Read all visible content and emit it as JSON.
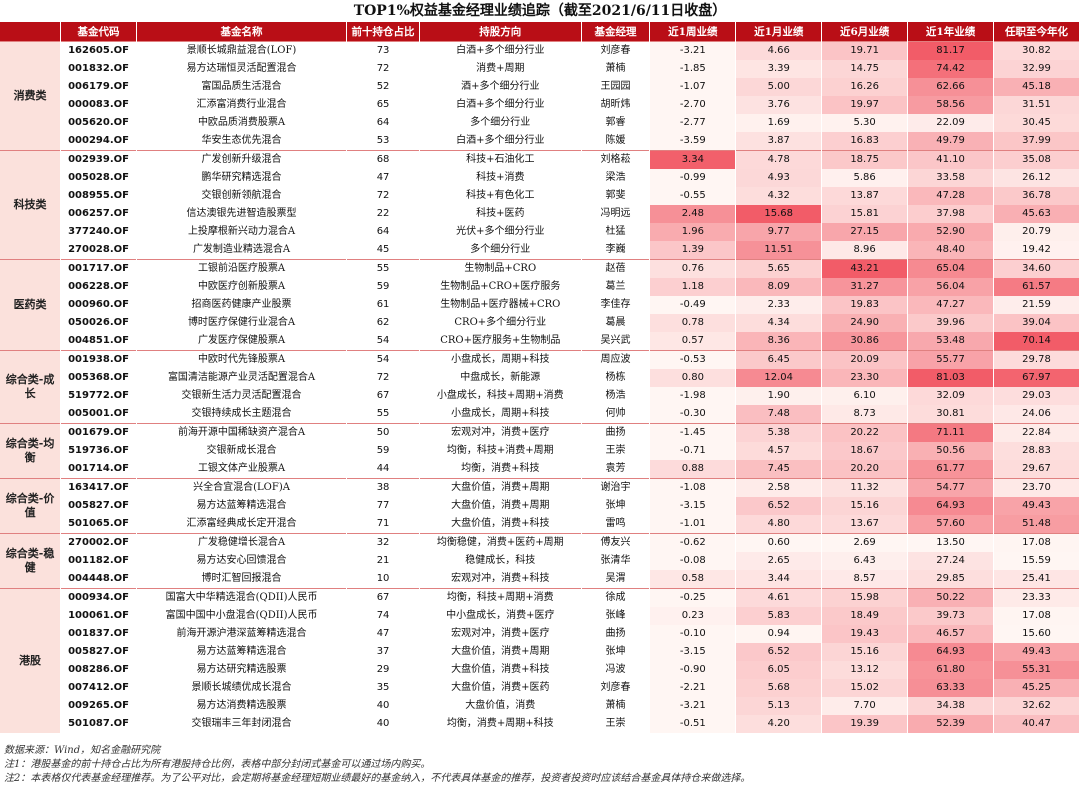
{
  "title": "TOP1%权益基金经理业绩追踪（截至2021/6/11日收盘）",
  "headers": [
    "",
    "基金代码",
    "基金名称",
    "前十持仓占比",
    "持股方向",
    "基金经理",
    "近1周业绩",
    "近1月业绩",
    "近6月业绩",
    "近1年业绩",
    "任职至今年化"
  ],
  "groups": [
    {
      "label": "消费类",
      "rows": [
        {
          "code": "162605.OF",
          "name": "景顺长城鼎益混合(LOF)",
          "hold": "73",
          "dir": "白酒+多个细分行业",
          "mgr": "刘彦春",
          "w1": "-3.21",
          "m1": "4.66",
          "m6": "19.71",
          "y1": "81.17",
          "ann": "30.82"
        },
        {
          "code": "001832.OF",
          "name": "易方达瑞恒灵活配置混合",
          "hold": "72",
          "dir": "消费+周期",
          "mgr": "萧楠",
          "w1": "-1.85",
          "m1": "3.39",
          "m6": "14.75",
          "y1": "74.42",
          "ann": "32.99"
        },
        {
          "code": "006179.OF",
          "name": "富国品质生活混合",
          "hold": "52",
          "dir": "酒+多个细分行业",
          "mgr": "王园园",
          "w1": "-1.07",
          "m1": "5.00",
          "m6": "16.26",
          "y1": "62.66",
          "ann": "45.18"
        },
        {
          "code": "000083.OF",
          "name": "汇添富消费行业混合",
          "hold": "65",
          "dir": "白酒+多个细分行业",
          "mgr": "胡昕炜",
          "w1": "-2.70",
          "m1": "3.76",
          "m6": "19.97",
          "y1": "58.56",
          "ann": "31.51"
        },
        {
          "code": "005620.OF",
          "name": "中欧品质消费股票A",
          "hold": "64",
          "dir": "多个细分行业",
          "mgr": "郭睿",
          "w1": "-2.77",
          "m1": "1.69",
          "m6": "5.30",
          "y1": "22.09",
          "ann": "30.45"
        },
        {
          "code": "000294.OF",
          "name": "华安生态优先混合",
          "hold": "53",
          "dir": "白酒+多个细分行业",
          "mgr": "陈媛",
          "w1": "-3.59",
          "m1": "3.87",
          "m6": "16.83",
          "y1": "49.79",
          "ann": "37.99"
        }
      ]
    },
    {
      "label": "科技类",
      "rows": [
        {
          "code": "002939.OF",
          "name": "广发创新升级混合",
          "hold": "68",
          "dir": "科技+石油化工",
          "mgr": "刘格菘",
          "w1": "3.34",
          "m1": "4.78",
          "m6": "18.75",
          "y1": "41.10",
          "ann": "35.08"
        },
        {
          "code": "005028.OF",
          "name": "鹏华研究精选混合",
          "hold": "47",
          "dir": "科技+消费",
          "mgr": "梁浩",
          "w1": "-0.99",
          "m1": "4.93",
          "m6": "5.86",
          "y1": "33.58",
          "ann": "26.12"
        },
        {
          "code": "008955.OF",
          "name": "交银创新领航混合",
          "hold": "72",
          "dir": "科技+有色化工",
          "mgr": "郭斐",
          "w1": "-0.55",
          "m1": "4.32",
          "m6": "13.87",
          "y1": "47.28",
          "ann": "36.78"
        },
        {
          "code": "006257.OF",
          "name": "信达澳银先进智造股票型",
          "hold": "22",
          "dir": "科技+医药",
          "mgr": "冯明远",
          "w1": "2.48",
          "m1": "15.68",
          "m6": "15.81",
          "y1": "37.98",
          "ann": "45.63"
        },
        {
          "code": "377240.OF",
          "name": "上投摩根新兴动力混合A",
          "hold": "64",
          "dir": "光伏+多个细分行业",
          "mgr": "杜猛",
          "w1": "1.96",
          "m1": "9.77",
          "m6": "27.15",
          "y1": "52.90",
          "ann": "20.79"
        },
        {
          "code": "270028.OF",
          "name": "广发制造业精选混合A",
          "hold": "45",
          "dir": "多个细分行业",
          "mgr": "李巍",
          "w1": "1.39",
          "m1": "11.51",
          "m6": "8.96",
          "y1": "48.40",
          "ann": "19.42"
        }
      ]
    },
    {
      "label": "医药类",
      "rows": [
        {
          "code": "001717.OF",
          "name": "工银前沿医疗股票A",
          "hold": "55",
          "dir": "生物制品+CRO",
          "mgr": "赵蓓",
          "w1": "0.76",
          "m1": "5.65",
          "m6": "43.21",
          "y1": "65.04",
          "ann": "34.60"
        },
        {
          "code": "006228.OF",
          "name": "中欧医疗创新股票A",
          "hold": "59",
          "dir": "生物制品+CRO+医疗服务",
          "mgr": "葛兰",
          "w1": "1.18",
          "m1": "8.09",
          "m6": "31.27",
          "y1": "56.04",
          "ann": "61.57"
        },
        {
          "code": "000960.OF",
          "name": "招商医药健康产业股票",
          "hold": "61",
          "dir": "生物制品+医疗器械+CRO",
          "mgr": "李佳存",
          "w1": "-0.49",
          "m1": "2.33",
          "m6": "19.83",
          "y1": "47.27",
          "ann": "21.59"
        },
        {
          "code": "050026.OF",
          "name": "博时医疗保健行业混合A",
          "hold": "62",
          "dir": "CRO+多个细分行业",
          "mgr": "葛晨",
          "w1": "0.78",
          "m1": "4.34",
          "m6": "24.90",
          "y1": "39.96",
          "ann": "39.04"
        },
        {
          "code": "004851.OF",
          "name": "广发医疗保健股票A",
          "hold": "54",
          "dir": "CRO+医疗服务+生物制品",
          "mgr": "吴兴武",
          "w1": "0.57",
          "m1": "8.36",
          "m6": "30.86",
          "y1": "53.48",
          "ann": "70.14"
        }
      ]
    },
    {
      "label": "综合类-成长",
      "rows": [
        {
          "code": "001938.OF",
          "name": "中欧时代先锋股票A",
          "hold": "54",
          "dir": "小盘成长，周期+科技",
          "mgr": "周应波",
          "w1": "-0.53",
          "m1": "6.45",
          "m6": "20.09",
          "y1": "55.77",
          "ann": "29.78"
        },
        {
          "code": "005368.OF",
          "name": "富国清洁能源产业灵活配置混合A",
          "hold": "72",
          "dir": "中盘成长，新能源",
          "mgr": "杨栋",
          "w1": "0.80",
          "m1": "12.04",
          "m6": "23.30",
          "y1": "81.03",
          "ann": "67.97"
        },
        {
          "code": "519772.OF",
          "name": "交银新生活力灵活配置混合",
          "hold": "67",
          "dir": "小盘成长，科技+周期+消费",
          "mgr": "杨浩",
          "w1": "-1.98",
          "m1": "1.90",
          "m6": "6.10",
          "y1": "32.09",
          "ann": "29.03"
        },
        {
          "code": "005001.OF",
          "name": "交银持续成长主题混合",
          "hold": "55",
          "dir": "小盘成长，周期+科技",
          "mgr": "何帅",
          "w1": "-0.30",
          "m1": "7.48",
          "m6": "8.73",
          "y1": "30.81",
          "ann": "24.06"
        }
      ]
    },
    {
      "label": "综合类-均衡",
      "rows": [
        {
          "code": "001679.OF",
          "name": "前海开源中国稀缺资产混合A",
          "hold": "50",
          "dir": "宏观对冲，消费+医疗",
          "mgr": "曲扬",
          "w1": "-1.45",
          "m1": "5.38",
          "m6": "20.22",
          "y1": "71.11",
          "ann": "22.84"
        },
        {
          "code": "519736.OF",
          "name": "交银新成长混合",
          "hold": "59",
          "dir": "均衡，科技+消费+周期",
          "mgr": "王崇",
          "w1": "-0.71",
          "m1": "4.57",
          "m6": "18.67",
          "y1": "50.56",
          "ann": "28.83"
        },
        {
          "code": "001714.OF",
          "name": "工银文体产业股票A",
          "hold": "44",
          "dir": "均衡，消费+科技",
          "mgr": "袁芳",
          "w1": "0.88",
          "m1": "7.45",
          "m6": "20.20",
          "y1": "61.77",
          "ann": "29.67"
        }
      ]
    },
    {
      "label": "综合类-价值",
      "rows": [
        {
          "code": "163417.OF",
          "name": "兴全合宜混合(LOF)A",
          "hold": "38",
          "dir": "大盘价值，消费+周期",
          "mgr": "谢治宇",
          "w1": "-1.08",
          "m1": "2.58",
          "m6": "11.32",
          "y1": "54.77",
          "ann": "23.70"
        },
        {
          "code": "005827.OF",
          "name": "易方达蓝筹精选混合",
          "hold": "77",
          "dir": "大盘价值，消费+周期",
          "mgr": "张坤",
          "w1": "-3.15",
          "m1": "6.52",
          "m6": "15.16",
          "y1": "64.93",
          "ann": "49.43"
        },
        {
          "code": "501065.OF",
          "name": "汇添富经典成长定开混合",
          "hold": "71",
          "dir": "大盘价值，消费+科技",
          "mgr": "雷鸣",
          "w1": "-1.01",
          "m1": "4.80",
          "m6": "13.67",
          "y1": "57.60",
          "ann": "51.48"
        }
      ]
    },
    {
      "label": "综合类-稳健",
      "rows": [
        {
          "code": "270002.OF",
          "name": "广发稳健增长混合A",
          "hold": "32",
          "dir": "均衡稳健，消费+医药+周期",
          "mgr": "傅友兴",
          "w1": "-0.62",
          "m1": "0.60",
          "m6": "2.69",
          "y1": "13.50",
          "ann": "17.08"
        },
        {
          "code": "001182.OF",
          "name": "易方达安心回馈混合",
          "hold": "21",
          "dir": "稳健成长，科技",
          "mgr": "张清华",
          "w1": "-0.08",
          "m1": "2.65",
          "m6": "6.43",
          "y1": "27.24",
          "ann": "15.59"
        },
        {
          "code": "004448.OF",
          "name": "博时汇智回报混合",
          "hold": "10",
          "dir": "宏观对冲，消费+科技",
          "mgr": "吴渭",
          "w1": "0.58",
          "m1": "3.44",
          "m6": "8.57",
          "y1": "29.85",
          "ann": "25.41"
        }
      ]
    },
    {
      "label": "港股",
      "rows": [
        {
          "code": "000934.OF",
          "name": "国富大中华精选混合(QDII)人民币",
          "hold": "67",
          "dir": "均衡，科技+周期+消费",
          "mgr": "徐成",
          "w1": "-0.25",
          "m1": "4.61",
          "m6": "15.98",
          "y1": "50.22",
          "ann": "23.33"
        },
        {
          "code": "100061.OF",
          "name": "富国中国中小盘混合(QDII)人民币",
          "hold": "74",
          "dir": "中小盘成长，消费+医疗",
          "mgr": "张峰",
          "w1": "0.23",
          "m1": "5.83",
          "m6": "18.49",
          "y1": "39.73",
          "ann": "17.08"
        },
        {
          "code": "001837.OF",
          "name": "前海开源沪港深蓝筹精选混合",
          "hold": "47",
          "dir": "宏观对冲，消费+医疗",
          "mgr": "曲扬",
          "w1": "-0.10",
          "m1": "0.94",
          "m6": "19.43",
          "y1": "46.57",
          "ann": "15.60"
        },
        {
          "code": "005827.OF",
          "name": "易方达蓝筹精选混合",
          "hold": "37",
          "dir": "大盘价值，消费+周期",
          "mgr": "张坤",
          "w1": "-3.15",
          "m1": "6.52",
          "m6": "15.16",
          "y1": "64.93",
          "ann": "49.43"
        },
        {
          "code": "008286.OF",
          "name": "易方达研究精选股票",
          "hold": "29",
          "dir": "大盘价值，消费+科技",
          "mgr": "冯波",
          "w1": "-0.90",
          "m1": "6.05",
          "m6": "13.12",
          "y1": "61.80",
          "ann": "55.31"
        },
        {
          "code": "007412.OF",
          "name": "景顺长城绩优成长混合",
          "hold": "35",
          "dir": "大盘价值，消费+医药",
          "mgr": "刘彦春",
          "w1": "-2.21",
          "m1": "5.68",
          "m6": "15.02",
          "y1": "63.33",
          "ann": "45.25"
        },
        {
          "code": "009265.OF",
          "name": "易方达消费精选股票",
          "hold": "40",
          "dir": "大盘价值，消费",
          "mgr": "萧楠",
          "w1": "-3.21",
          "m1": "5.13",
          "m6": "7.70",
          "y1": "34.38",
          "ann": "32.62"
        },
        {
          "code": "501087.OF",
          "name": "交银瑞丰三年封闭混合",
          "hold": "40",
          "dir": "均衡，消费+周期+科技",
          "mgr": "王崇",
          "w1": "-0.51",
          "m1": "4.20",
          "m6": "19.39",
          "y1": "52.39",
          "ann": "40.47"
        }
      ]
    }
  ],
  "notes": [
    "数据来源：Wind，知名金融研究院",
    "注1：港股基金的前十持仓占比为所有港股持仓比例，表格中部分封闭式基金可以通过场内购买。",
    "注2：本表格仅代表基金经理推荐。为了公平对比，会定期将基金经理短期业绩最好的基金纳入，不代表具体基金的推荐，投资者投资时应该结合基金具体持仓来做选择。"
  ],
  "colors": {
    "header": "#b90e16",
    "group_bg": "#fbe1dc",
    "heat_hi": "#f25c68",
    "heat_lo": "#fff0ec"
  }
}
